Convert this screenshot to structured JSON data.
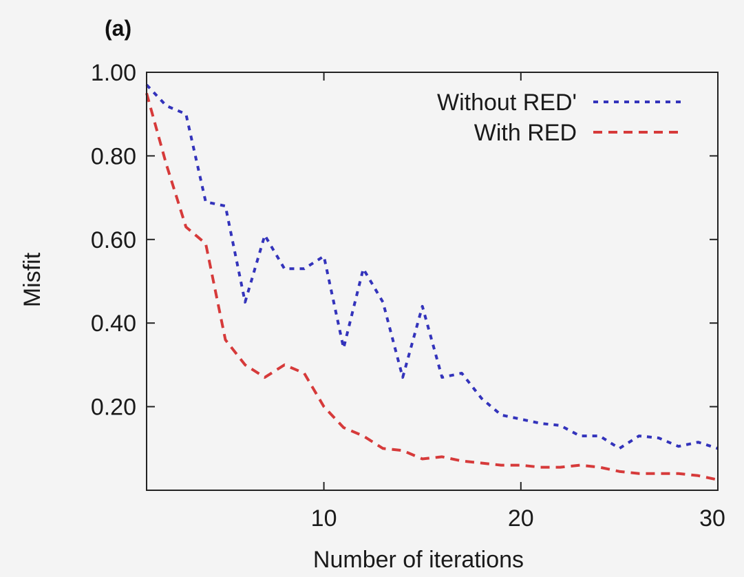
{
  "panel_label": "(a)",
  "chart_data": {
    "type": "line",
    "title": "",
    "xlabel": "Number of iterations",
    "ylabel": "Misfit",
    "xlim": [
      1,
      30
    ],
    "ylim": [
      0,
      1.0
    ],
    "xticks": [
      10,
      20,
      30
    ],
    "yticks": [
      0.2,
      0.4,
      0.6,
      0.8,
      1.0
    ],
    "xtick_labels": [
      "10",
      "20",
      "30"
    ],
    "ytick_labels": [
      "0.20",
      "0.40",
      "0.60",
      "0.80",
      "1.00"
    ],
    "grid": false,
    "legend_position": "top-right",
    "series": [
      {
        "name": "Without RED'",
        "color": "#3333bb",
        "style": "dotted",
        "x": [
          1,
          2,
          3,
          4,
          5,
          6,
          7,
          8,
          9,
          10,
          11,
          12,
          13,
          14,
          15,
          16,
          17,
          18,
          19,
          20,
          21,
          22,
          23,
          24,
          25,
          26,
          27,
          28,
          29,
          30
        ],
        "y": [
          0.97,
          0.92,
          0.9,
          0.69,
          0.68,
          0.45,
          0.61,
          0.53,
          0.53,
          0.56,
          0.34,
          0.53,
          0.45,
          0.27,
          0.44,
          0.27,
          0.28,
          0.22,
          0.18,
          0.17,
          0.16,
          0.155,
          0.13,
          0.13,
          0.1,
          0.13,
          0.125,
          0.105,
          0.115,
          0.1
        ]
      },
      {
        "name": "With RED",
        "color": "#d63a3a",
        "style": "dashed",
        "x": [
          1,
          2,
          3,
          4,
          5,
          6,
          7,
          8,
          9,
          10,
          11,
          12,
          13,
          14,
          15,
          16,
          17,
          18,
          19,
          20,
          21,
          22,
          23,
          24,
          25,
          26,
          27,
          28,
          29,
          30
        ],
        "y": [
          0.95,
          0.78,
          0.63,
          0.59,
          0.36,
          0.3,
          0.27,
          0.3,
          0.28,
          0.2,
          0.15,
          0.13,
          0.1,
          0.095,
          0.075,
          0.08,
          0.07,
          0.065,
          0.06,
          0.06,
          0.055,
          0.055,
          0.06,
          0.055,
          0.045,
          0.04,
          0.04,
          0.04,
          0.035,
          0.025
        ]
      }
    ]
  }
}
